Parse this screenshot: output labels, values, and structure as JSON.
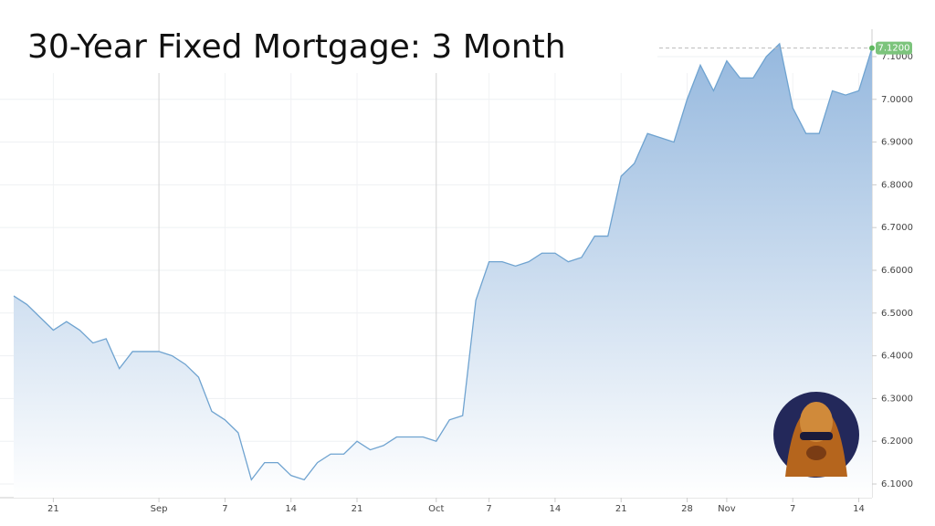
{
  "chart_data": {
    "type": "area",
    "title": "30-Year Fixed Mortgage: 3 Month",
    "categories": [
      null,
      null,
      null,
      "21",
      null,
      null,
      null,
      null,
      null,
      null,
      null,
      "Sep",
      null,
      null,
      null,
      null,
      "7",
      null,
      null,
      null,
      null,
      "14",
      null,
      null,
      null,
      null,
      "21",
      null,
      null,
      null,
      null,
      null,
      "Oct",
      null,
      null,
      null,
      "7",
      null,
      null,
      null,
      null,
      "14",
      null,
      null,
      null,
      null,
      "21",
      null,
      null,
      null,
      null,
      "28",
      null,
      null,
      "Nov",
      null,
      null,
      null,
      null,
      "7",
      null,
      null,
      null,
      null,
      "14",
      null
    ],
    "series": [
      {
        "name": "30-Year Fixed Mortgage",
        "color": "#6fa3d0",
        "values": [
          6.54,
          6.52,
          6.49,
          6.46,
          6.48,
          6.46,
          6.43,
          6.44,
          6.37,
          6.41,
          6.41,
          6.41,
          6.4,
          6.38,
          6.35,
          6.27,
          6.25,
          6.22,
          6.11,
          6.15,
          6.15,
          6.12,
          6.11,
          6.15,
          6.17,
          6.17,
          6.2,
          6.18,
          6.19,
          6.21,
          6.21,
          6.21,
          6.2,
          6.25,
          6.26,
          6.53,
          6.62,
          6.62,
          6.61,
          6.62,
          6.64,
          6.64,
          6.62,
          6.63,
          6.68,
          6.68,
          6.82,
          6.85,
          6.92,
          6.91,
          6.9,
          7.0,
          7.08,
          7.02,
          7.09,
          7.05,
          7.05,
          7.1,
          7.13,
          6.98,
          6.92,
          6.92,
          7.02,
          7.01,
          7.02,
          7.12
        ],
        "value_labels": [
          null,
          null,
          null,
          null,
          null,
          null,
          null,
          null,
          null,
          null,
          null,
          null,
          null,
          null,
          null,
          null,
          null,
          null,
          null,
          null,
          null,
          null,
          null,
          null,
          null,
          null,
          null,
          null,
          null,
          null,
          null,
          null,
          null,
          null,
          null,
          null,
          null,
          null,
          null,
          null,
          null,
          null,
          null,
          null,
          null,
          null,
          null,
          null,
          null,
          null,
          null,
          null,
          null,
          null,
          null,
          null,
          null,
          null,
          null,
          null,
          null,
          null,
          null,
          null,
          null,
          "7.1200"
        ]
      }
    ],
    "ylim": [
      6.068,
      7.164
    ],
    "yticks": [
      {
        "value": 6.1,
        "label": "6.1000"
      },
      {
        "value": 6.2,
        "label": "6.2000"
      },
      {
        "value": 6.3,
        "label": "6.3000"
      },
      {
        "value": 6.4,
        "label": "6.4000"
      },
      {
        "value": 6.5,
        "label": "6.5000"
      },
      {
        "value": 6.6,
        "label": "6.6000"
      },
      {
        "value": 6.7,
        "label": "6.7000"
      },
      {
        "value": 6.8,
        "label": "6.8000"
      },
      {
        "value": 6.9,
        "label": "6.9000"
      },
      {
        "value": 7.0,
        "label": "7.0000"
      },
      {
        "value": 7.1,
        "label": "7.1000"
      }
    ],
    "grid": true
  }
}
